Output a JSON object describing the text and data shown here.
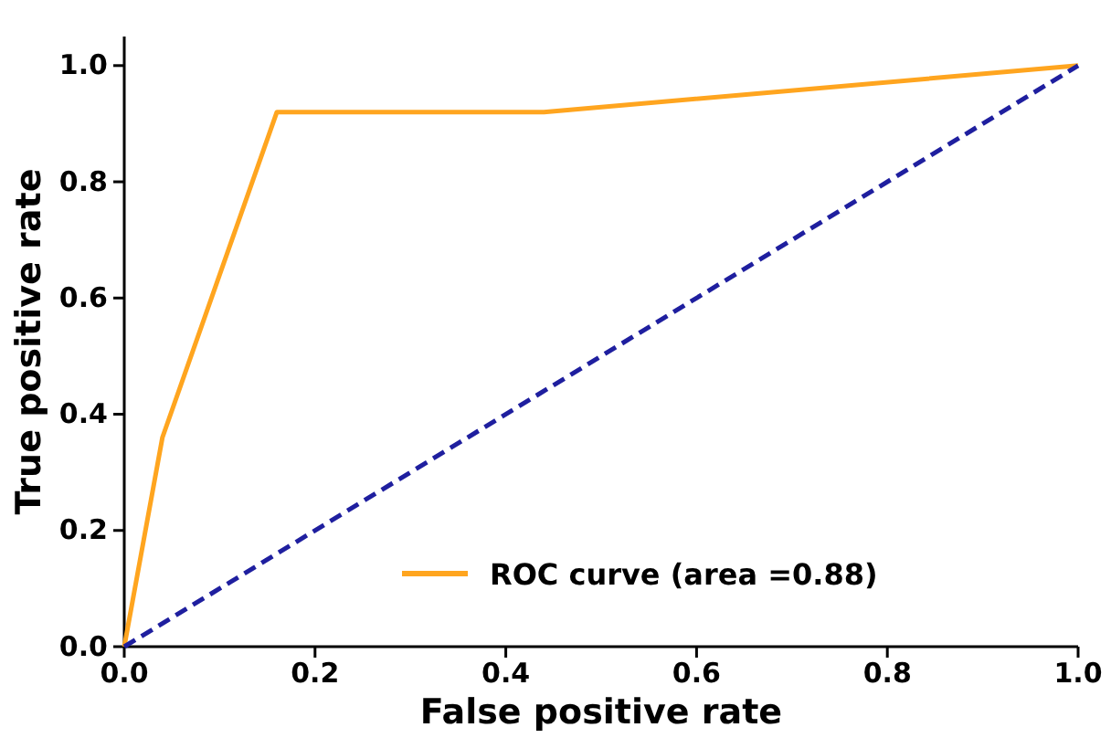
{
  "chart_data": {
    "type": "line",
    "xlabel": "False positive rate",
    "ylabel": "True positive rate",
    "xlim": [
      0,
      1
    ],
    "ylim": [
      0,
      1.05
    ],
    "xticks": [
      {
        "value": 0,
        "label": "0.0"
      },
      {
        "value": 0.2,
        "label": "0.2"
      },
      {
        "value": 0.4,
        "label": "0.4"
      },
      {
        "value": 0.6,
        "label": "0.6"
      },
      {
        "value": 0.8,
        "label": "0.8"
      },
      {
        "value": 1,
        "label": "1.0"
      }
    ],
    "yticks": [
      {
        "value": 0,
        "label": "0.0"
      },
      {
        "value": 0.2,
        "label": "0.2"
      },
      {
        "value": 0.4,
        "label": "0.4"
      },
      {
        "value": 0.6,
        "label": "0.6"
      },
      {
        "value": 0.8,
        "label": "0.8"
      },
      {
        "value": 1,
        "label": "1.0"
      }
    ],
    "legend": "bottom right",
    "grid": false,
    "series": [
      {
        "name": "ROC curve (area =0.88)",
        "color": "#ffa51f",
        "x": [
          0,
          0.04,
          0.16,
          0.44,
          1
        ],
        "values": [
          0,
          0.36,
          0.92,
          0.92,
          1
        ],
        "line_style": "solid"
      },
      {
        "color": "#1f1f9f",
        "x": [
          0,
          1
        ],
        "values": [
          0,
          1
        ],
        "line_style": "dashed"
      }
    ]
  }
}
